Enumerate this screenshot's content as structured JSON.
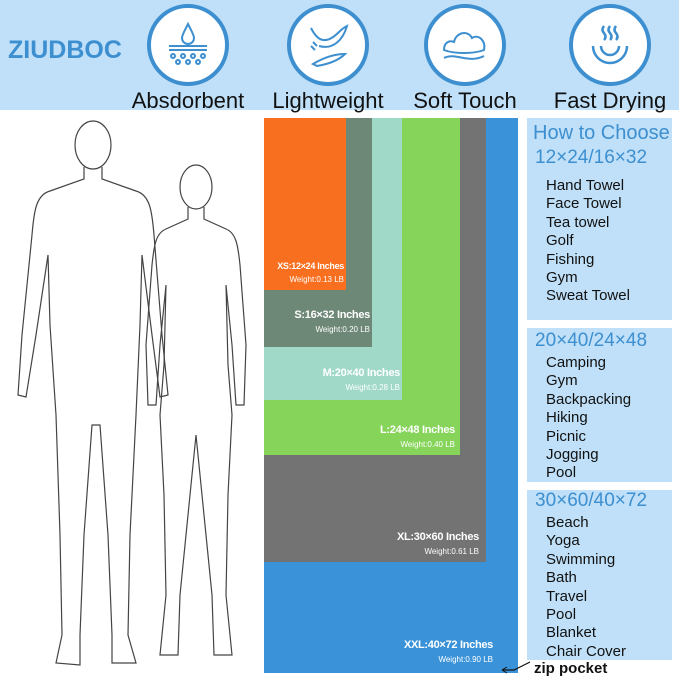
{
  "brand": "ZIUDBOC",
  "features": [
    {
      "label": "Absdorbent",
      "icon": "water-drop-icon"
    },
    {
      "label": "Lightweight",
      "icon": "feather-hand-icon"
    },
    {
      "label": "Soft Touch",
      "icon": "cloud-icon"
    },
    {
      "label": "Fast Drying",
      "icon": "steam-icon"
    }
  ],
  "sizes": [
    {
      "size": "XS:12×24 Inches",
      "weight": "Weight:0.13 LB",
      "color": "#f86f1f"
    },
    {
      "size": "S:16×32 Inches",
      "weight": "Weight:0.20 LB",
      "color": "#6e8878"
    },
    {
      "size": "M:20×40 Inches",
      "weight": "Weight:0.28 LB",
      "color": "#a0d9c8"
    },
    {
      "size": "L:24×48 Inches",
      "weight": "Weight:0.40 LB",
      "color": "#86d45a"
    },
    {
      "size": "XL:30×60 Inches",
      "weight": "Weight:0.61 LB",
      "color": "#737373"
    },
    {
      "size": "XXL:40×72 Inches",
      "weight": "Weight:0.90 LB",
      "color": "#3a93d8"
    }
  ],
  "guide": {
    "title": "How to Choose",
    "groups": [
      {
        "heading": "12×24/16×32",
        "items": [
          "Hand Towel",
          "Face Towel",
          "Tea towel",
          "Golf",
          "Fishing",
          "Gym",
          "Sweat Towel"
        ]
      },
      {
        "heading": "20×40/24×48",
        "items": [
          "Camping",
          "Gym",
          "Backpacking",
          "Hiking",
          "Picnic",
          "Jogging",
          "Pool"
        ]
      },
      {
        "heading": "30×60/40×72",
        "items": [
          "Beach",
          "Yoga",
          "Swimming",
          "Bath",
          "Travel",
          "Pool",
          "Blanket",
          "Chair Cover"
        ]
      }
    ]
  },
  "zip_label": "zip pocket"
}
